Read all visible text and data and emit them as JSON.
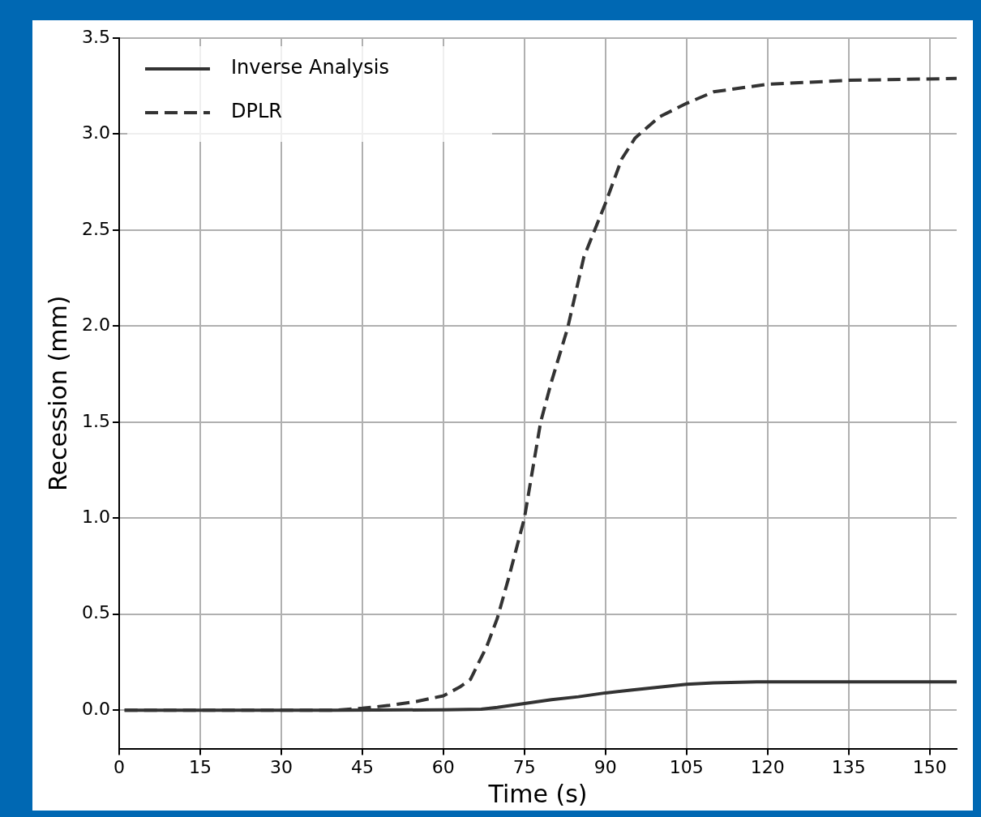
{
  "chart_data": {
    "type": "line",
    "xlabel": "Time (s)",
    "ylabel": "Recession (mm)",
    "xlim": [
      0,
      155
    ],
    "xticks": [
      0,
      15,
      30,
      45,
      60,
      75,
      90,
      105,
      120,
      135,
      150
    ],
    "ylim": [
      -0.2,
      3.5
    ],
    "yticks": [
      {
        "value": 0,
        "label": "0.0"
      },
      0.5,
      {
        "value": 1,
        "label": "1.0"
      },
      1.5,
      {
        "value": 2,
        "label": "2.0"
      },
      2.5,
      {
        "value": 3,
        "label": "3.0"
      },
      3.5
    ],
    "grid": true,
    "legend": "top left",
    "marker": "none",
    "series": [
      {
        "name": "Inverse Analysis",
        "color": "#333333",
        "line_style": "solid",
        "x": [
          1,
          40,
          60,
          67,
          70,
          75,
          80,
          85,
          90,
          95,
          100,
          105,
          110,
          118,
          135,
          155
        ],
        "values": [
          0,
          0,
          0.002,
          0.005,
          0.015,
          0.035,
          0.055,
          0.07,
          0.09,
          0.105,
          0.12,
          0.135,
          0.142,
          0.148,
          0.148,
          0.148
        ]
      },
      {
        "name": "DPLR",
        "color": "#333333",
        "line_style": "dashed",
        "x": [
          1,
          40,
          45,
          50,
          55,
          60,
          63,
          65,
          68,
          70,
          72,
          75,
          78,
          80,
          83,
          86,
          88,
          90,
          93,
          95.5,
          100,
          105,
          110,
          120,
          135,
          155
        ],
        "values": [
          0,
          0,
          0.01,
          0.025,
          0.045,
          0.075,
          0.12,
          0.16,
          0.33,
          0.48,
          0.68,
          1.0,
          1.5,
          1.71,
          1.99,
          2.36,
          2.5,
          2.64,
          2.87,
          2.98,
          3.09,
          3.16,
          3.22,
          3.26,
          3.28,
          3.29
        ]
      }
    ]
  }
}
